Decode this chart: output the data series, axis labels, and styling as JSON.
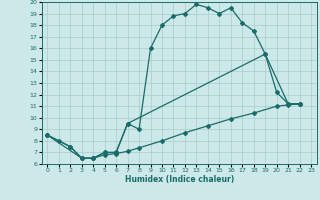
{
  "background_color": "#cce8e8",
  "grid_color": "#aacccc",
  "line_color": "#1a6b6b",
  "marker": "D",
  "marker_size": 2.0,
  "linewidth": 0.9,
  "xlim": [
    -0.5,
    23.5
  ],
  "ylim": [
    6,
    20
  ],
  "xlabel": "Humidex (Indice chaleur)",
  "xticks": [
    0,
    1,
    2,
    3,
    4,
    5,
    6,
    7,
    8,
    9,
    10,
    11,
    12,
    13,
    14,
    15,
    16,
    17,
    18,
    19,
    20,
    21,
    22,
    23
  ],
  "yticks": [
    6,
    7,
    8,
    9,
    10,
    11,
    12,
    13,
    14,
    15,
    16,
    17,
    18,
    19,
    20
  ],
  "line1_x": [
    0,
    1,
    2,
    3,
    4,
    5,
    6,
    7,
    8,
    9,
    10,
    11,
    12,
    13,
    14,
    15,
    16,
    17,
    18,
    19,
    21,
    22
  ],
  "line1_y": [
    8.5,
    8.0,
    7.5,
    6.5,
    6.5,
    7.0,
    7.0,
    9.5,
    9.0,
    16.0,
    18.0,
    18.8,
    19.0,
    19.8,
    19.5,
    19.0,
    19.5,
    18.2,
    17.5,
    15.5,
    11.2,
    11.2
  ],
  "line2_x": [
    0,
    3,
    4,
    5,
    6,
    7,
    19,
    20,
    21,
    22
  ],
  "line2_y": [
    8.5,
    6.5,
    6.5,
    7.0,
    7.0,
    9.5,
    15.5,
    12.2,
    11.2,
    11.2
  ],
  "line3_x": [
    0,
    2,
    3,
    4,
    5,
    6,
    7,
    8,
    10,
    12,
    14,
    16,
    18,
    20,
    21,
    22
  ],
  "line3_y": [
    8.5,
    7.5,
    6.5,
    6.5,
    6.8,
    6.9,
    7.1,
    7.4,
    8.0,
    8.7,
    9.3,
    9.9,
    10.4,
    11.0,
    11.1,
    11.2
  ]
}
